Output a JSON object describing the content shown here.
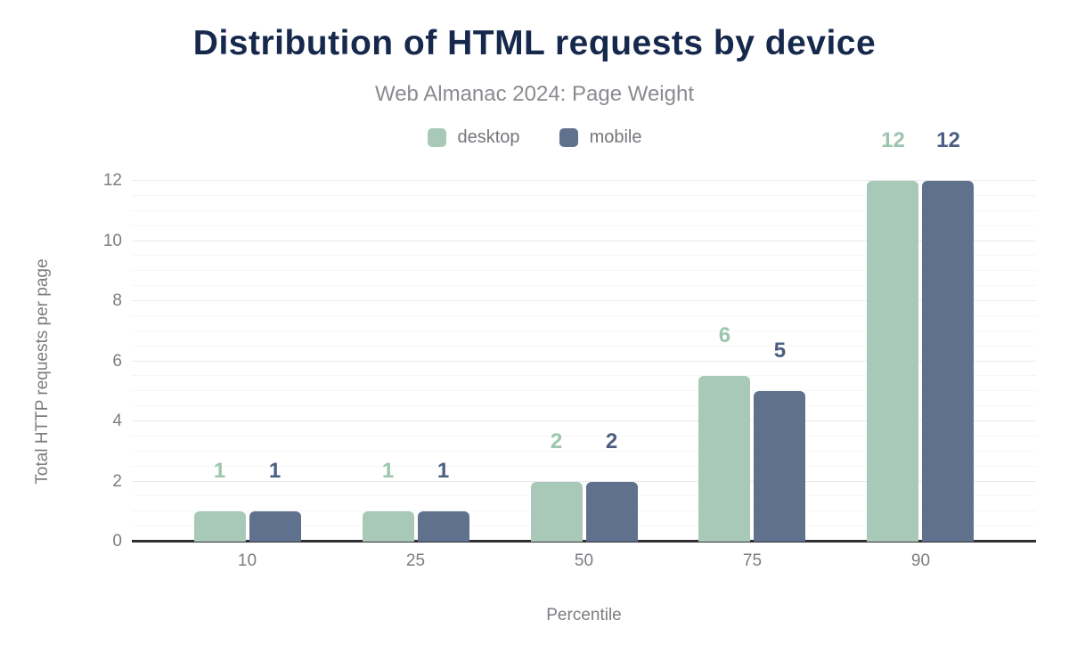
{
  "chart_data": {
    "type": "bar",
    "title": "Distribution of HTML requests by device",
    "subtitle": "Web Almanac 2024: Page Weight",
    "xlabel": "Percentile",
    "ylabel": "Total HTTP requests per page",
    "categories": [
      "10",
      "25",
      "50",
      "75",
      "90"
    ],
    "series": [
      {
        "name": "desktop",
        "color": "#a9c9b8",
        "label_color": "#9cc5af",
        "values": [
          1,
          1,
          2,
          5.5,
          12
        ],
        "bar_labels": [
          "1",
          "1",
          "2",
          "6",
          "12"
        ]
      },
      {
        "name": "mobile",
        "color": "#5f718d",
        "label_color": "#4c5f81",
        "values": [
          1,
          1,
          2,
          5,
          12
        ],
        "bar_labels": [
          "1",
          "1",
          "2",
          "5",
          "12"
        ]
      }
    ],
    "ylim": [
      0,
      12
    ],
    "yticks": [
      0,
      2,
      4,
      6,
      8,
      10,
      12
    ],
    "minor_grid_step": 0.5,
    "grid": "horizontal, major + minor, no vertical",
    "legend_position": "top-center"
  },
  "colors": {
    "background": "#ffffff",
    "title": "#16294d",
    "subtitle": "#8b8a90",
    "axis_text": "#7d7c82",
    "axis_line": "#2f2f34",
    "grid_major": "#eaeaea",
    "grid_minor": "#f6f6f6",
    "desktop": "#a9c9b8",
    "mobile": "#5f718d"
  }
}
